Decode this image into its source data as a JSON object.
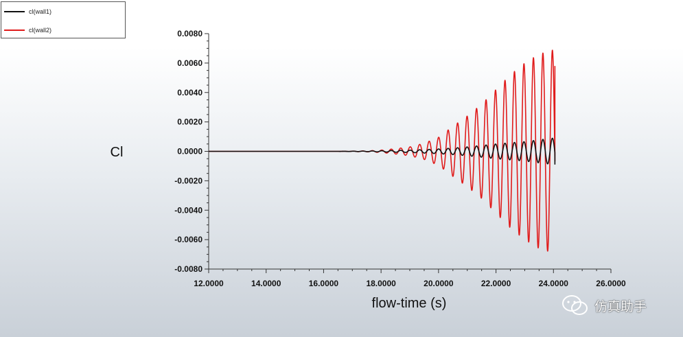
{
  "legend": {
    "items": [
      {
        "label": "cl(wall1)",
        "color": "#111111"
      },
      {
        "label": "cl(wall2)",
        "color": "#e01b1b"
      }
    ]
  },
  "watermark": {
    "text": "仿真助手",
    "icon": "wechat-icon"
  },
  "chart_data": {
    "type": "line",
    "title": "",
    "xlabel": "flow-time (s)",
    "ylabel": "Cl",
    "xlim": [
      12.0,
      26.0
    ],
    "ylim": [
      -0.008,
      0.008
    ],
    "xticks": [
      "12.0000",
      "14.0000",
      "16.0000",
      "18.0000",
      "20.0000",
      "22.0000",
      "24.0000",
      "26.0000"
    ],
    "yticks": [
      "0.0080",
      "0.0060",
      "0.0040",
      "0.0020",
      "0.0000",
      "-0.0020",
      "-0.0040",
      "-0.0060",
      "-0.0080"
    ],
    "grid": false,
    "legend_position": "top-left",
    "series": [
      {
        "name": "cl(wall1)",
        "color": "#111111",
        "points": [
          [
            12.0,
            0.0
          ],
          [
            16.5,
            0.0
          ],
          [
            17.5,
            2e-05
          ],
          [
            18.0,
            4e-05
          ],
          [
            18.5,
            6e-05
          ],
          [
            19.0,
            8e-05
          ],
          [
            19.5,
            0.00012
          ],
          [
            20.0,
            0.00016
          ],
          [
            20.5,
            0.00022
          ],
          [
            21.0,
            0.0003
          ],
          [
            21.5,
            0.0004
          ],
          [
            22.0,
            0.0005
          ],
          [
            22.5,
            0.00058
          ],
          [
            23.0,
            0.00066
          ],
          [
            23.5,
            0.00078
          ],
          [
            24.0,
            0.0009
          ],
          [
            24.05,
            0.00092
          ]
        ],
        "oscillation_period": 0.33,
        "end_value": -0.0009
      },
      {
        "name": "cl(wall2)",
        "color": "#e01b1b",
        "points": [
          [
            12.0,
            0.0
          ],
          [
            16.5,
            0.0
          ],
          [
            17.5,
            3e-05
          ],
          [
            18.0,
            8e-05
          ],
          [
            18.5,
            0.00018
          ],
          [
            19.0,
            0.0003
          ],
          [
            19.5,
            0.00055
          ],
          [
            20.0,
            0.00095
          ],
          [
            20.5,
            0.0017
          ],
          [
            21.0,
            0.0024
          ],
          [
            21.5,
            0.0032
          ],
          [
            22.0,
            0.0042
          ],
          [
            22.5,
            0.0052
          ],
          [
            23.0,
            0.006
          ],
          [
            23.5,
            0.0066
          ],
          [
            24.0,
            0.0069
          ],
          [
            24.05,
            0.007
          ]
        ],
        "oscillation_period": 0.33,
        "end_value": 0.0058
      }
    ]
  }
}
